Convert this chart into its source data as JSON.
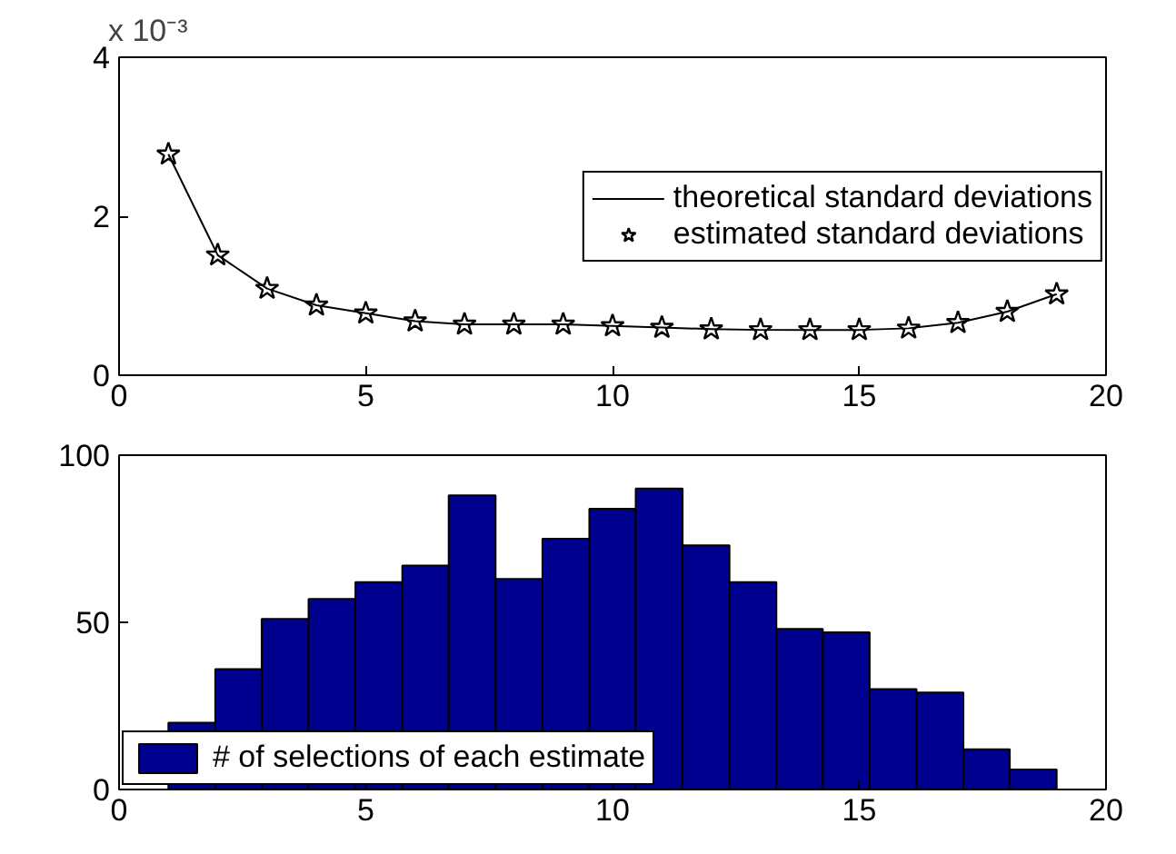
{
  "chart_data": [
    {
      "type": "line",
      "xlim": [
        0,
        20
      ],
      "xticks": [
        0,
        5,
        10,
        15,
        20
      ],
      "ylim": [
        0,
        4
      ],
      "yticks": [
        0,
        2,
        4
      ],
      "annotations": [
        "x 10⁻³"
      ],
      "legend": "right",
      "grid": false,
      "x": [
        1,
        2,
        3,
        4,
        5,
        6,
        7,
        8,
        9,
        10,
        11,
        12,
        13,
        14,
        15,
        16,
        17,
        18,
        19
      ],
      "series": [
        {
          "name": "theoretical standard deviations",
          "type": "line",
          "color": "#000000",
          "line_style": "solid",
          "marker": "none",
          "values": [
            2.78,
            1.51,
            1.09,
            0.88,
            0.78,
            0.68,
            0.64,
            0.64,
            0.64,
            0.62,
            0.6,
            0.58,
            0.57,
            0.57,
            0.57,
            0.59,
            0.66,
            0.8,
            1.02
          ]
        },
        {
          "name": "estimated standard deviations",
          "type": "scatter",
          "color": "#000000",
          "marker": "star",
          "values": [
            2.78,
            1.51,
            1.09,
            0.88,
            0.78,
            0.68,
            0.64,
            0.64,
            0.64,
            0.62,
            0.6,
            0.58,
            0.57,
            0.57,
            0.57,
            0.59,
            0.66,
            0.8,
            1.02
          ]
        }
      ]
    },
    {
      "type": "histogram",
      "xlim": [
        0,
        20
      ],
      "xticks": [
        0,
        5,
        10,
        15,
        20
      ],
      "ylim": [
        0,
        100
      ],
      "yticks": [
        0,
        50,
        100
      ],
      "legend": "bottom left",
      "grid": false,
      "bins": [
        1.0,
        1.95,
        2.89,
        3.84,
        4.79,
        5.74,
        6.68,
        7.63,
        8.58,
        9.53,
        10.47,
        11.42,
        12.37,
        13.32,
        14.26,
        15.21,
        16.16,
        17.11,
        18.05,
        19.0
      ],
      "series": [
        {
          "name": "# of selections of each estimate",
          "color": "#00008f",
          "values": [
            20,
            36,
            51,
            57,
            62,
            67,
            88,
            63,
            75,
            84,
            90,
            73,
            62,
            48,
            47,
            30,
            29,
            12,
            6
          ]
        }
      ]
    }
  ]
}
